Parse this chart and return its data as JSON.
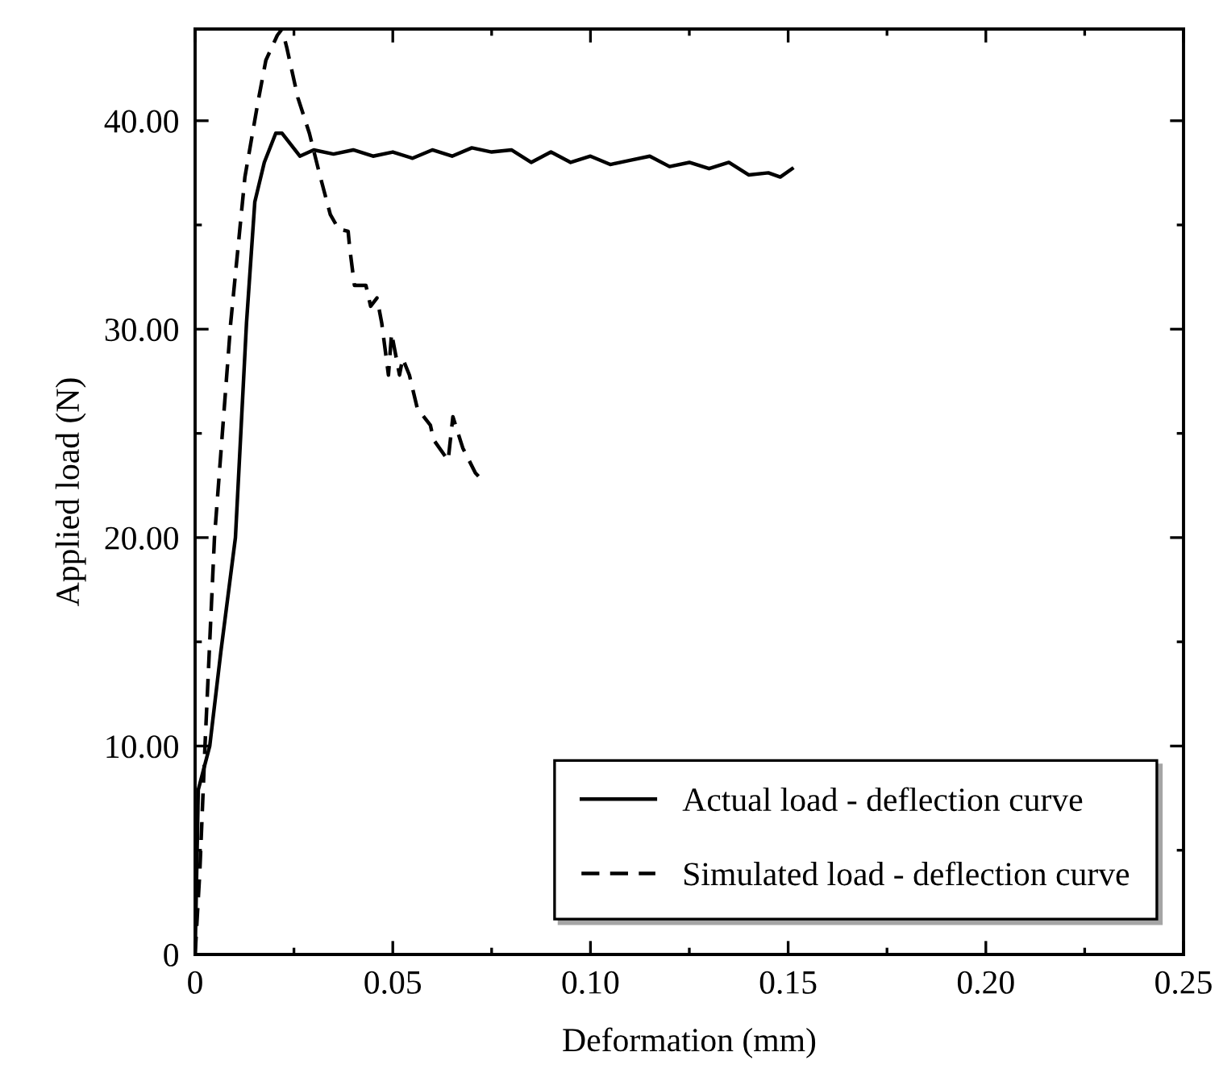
{
  "chart_data": {
    "type": "line",
    "xlabel": "Deformation (mm)",
    "ylabel": "Applied load (N)",
    "xlim": [
      0,
      0.25
    ],
    "ylim": [
      0,
      44.4
    ],
    "xticks": [
      {
        "value": 0,
        "label": "0"
      },
      {
        "value": 0.025,
        "label": null
      },
      {
        "value": 0.05,
        "label": "0.05"
      },
      {
        "value": 0.075,
        "label": null
      },
      {
        "value": 0.1,
        "label": "0.10"
      },
      {
        "value": 0.125,
        "label": null
      },
      {
        "value": 0.15,
        "label": "0.15"
      },
      {
        "value": 0.175,
        "label": null
      },
      {
        "value": 0.2,
        "label": "0.20"
      },
      {
        "value": 0.225,
        "label": null
      },
      {
        "value": 0.25,
        "label": "0.25"
      }
    ],
    "yticks": [
      0,
      {
        "value": 5,
        "label": null
      },
      {
        "value": 10,
        "label": "10.00"
      },
      {
        "value": 15,
        "label": null
      },
      {
        "value": 20,
        "label": "20.00"
      },
      {
        "value": 25,
        "label": null
      },
      {
        "value": 30,
        "label": "30.00"
      },
      {
        "value": 35,
        "label": null
      },
      {
        "value": 40,
        "label": "40.00"
      }
    ],
    "grid": false,
    "legend": "bottom right",
    "marker": "none",
    "series": [
      {
        "name": "Actual load - deflection curve",
        "color": "#000000",
        "line_style": "solid",
        "x": [
          0,
          0.0008,
          0.0037,
          0.0065,
          0.0102,
          0.013,
          0.0151,
          0.0175,
          0.0204,
          0.022,
          0.0265,
          0.03,
          0.035,
          0.04,
          0.045,
          0.05,
          0.055,
          0.06,
          0.065,
          0.07,
          0.075,
          0.08,
          0.085,
          0.09,
          0.095,
          0.1,
          0.105,
          0.11,
          0.115,
          0.12,
          0.125,
          0.13,
          0.135,
          0.14,
          0.145,
          0.148,
          0.151
        ],
        "values": [
          0,
          7.9,
          10,
          14.5,
          20,
          30.3,
          36.1,
          38.0,
          39.4,
          39.4,
          38.3,
          38.6,
          38.4,
          38.6,
          38.3,
          38.5,
          38.2,
          38.6,
          38.3,
          38.7,
          38.5,
          38.6,
          38.0,
          38.5,
          38.0,
          38.3,
          37.9,
          38.1,
          38.3,
          37.8,
          38.0,
          37.7,
          38.0,
          37.4,
          37.5,
          37.3,
          37.7
        ]
      },
      {
        "name": "Simulated load - deflection curve",
        "color": "#000000",
        "line_style": "dashed",
        "x": [
          0,
          0.0012,
          0.0025,
          0.0049,
          0.009,
          0.0126,
          0.0159,
          0.0179,
          0.0208,
          0.022,
          0.0232,
          0.026,
          0.0289,
          0.0314,
          0.0342,
          0.0363,
          0.0387,
          0.0391,
          0.0403,
          0.0432,
          0.0444,
          0.046,
          0.0472,
          0.0489,
          0.0497,
          0.0517,
          0.0525,
          0.0542,
          0.0562,
          0.0595,
          0.0603,
          0.064,
          0.0652,
          0.0677,
          0.0709,
          0.0729
        ],
        "values": [
          0,
          4,
          10,
          20,
          30.3,
          37.3,
          40.9,
          42.9,
          44.1,
          44.4,
          43.5,
          41.1,
          39.4,
          37.5,
          35.5,
          34.8,
          34.7,
          33.9,
          32.1,
          32.1,
          31.1,
          31.5,
          30.3,
          27.8,
          29.8,
          27.8,
          28.6,
          27.8,
          26.2,
          25.4,
          24.7,
          23.7,
          25.8,
          24.3,
          23.1,
          22.7
        ]
      }
    ]
  }
}
